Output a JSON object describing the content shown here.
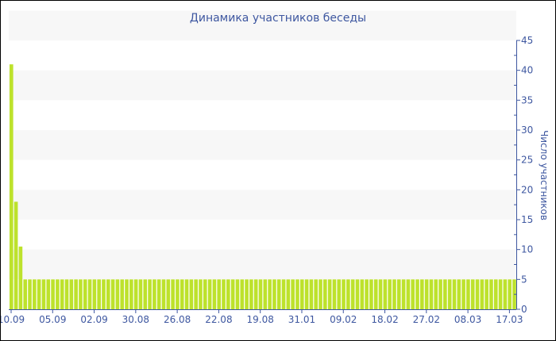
{
  "chart_data": {
    "type": "bar",
    "title": "Динамика участников беседы",
    "ylabel": "Число участников",
    "xlabel": "",
    "ylim": [
      0,
      45
    ],
    "yticks": [
      0,
      5,
      10,
      15,
      20,
      25,
      30,
      35,
      40,
      45
    ],
    "y_axis_position": "right",
    "grid": "alternating horizontal bands",
    "xtick_labels": [
      "10.09",
      "05.09",
      "02.09",
      "30.08",
      "26.08",
      "22.08",
      "19.08",
      "31.01",
      "09.02",
      "18.02",
      "27.02",
      "08.03",
      "17.03"
    ],
    "values_head": [
      41,
      18,
      10.5
    ],
    "values_tail_value": 5,
    "bar_count": 110,
    "colors": {
      "bar": "#bde22c",
      "axis": "#3e57a0",
      "band": "#f7f7f7"
    }
  }
}
